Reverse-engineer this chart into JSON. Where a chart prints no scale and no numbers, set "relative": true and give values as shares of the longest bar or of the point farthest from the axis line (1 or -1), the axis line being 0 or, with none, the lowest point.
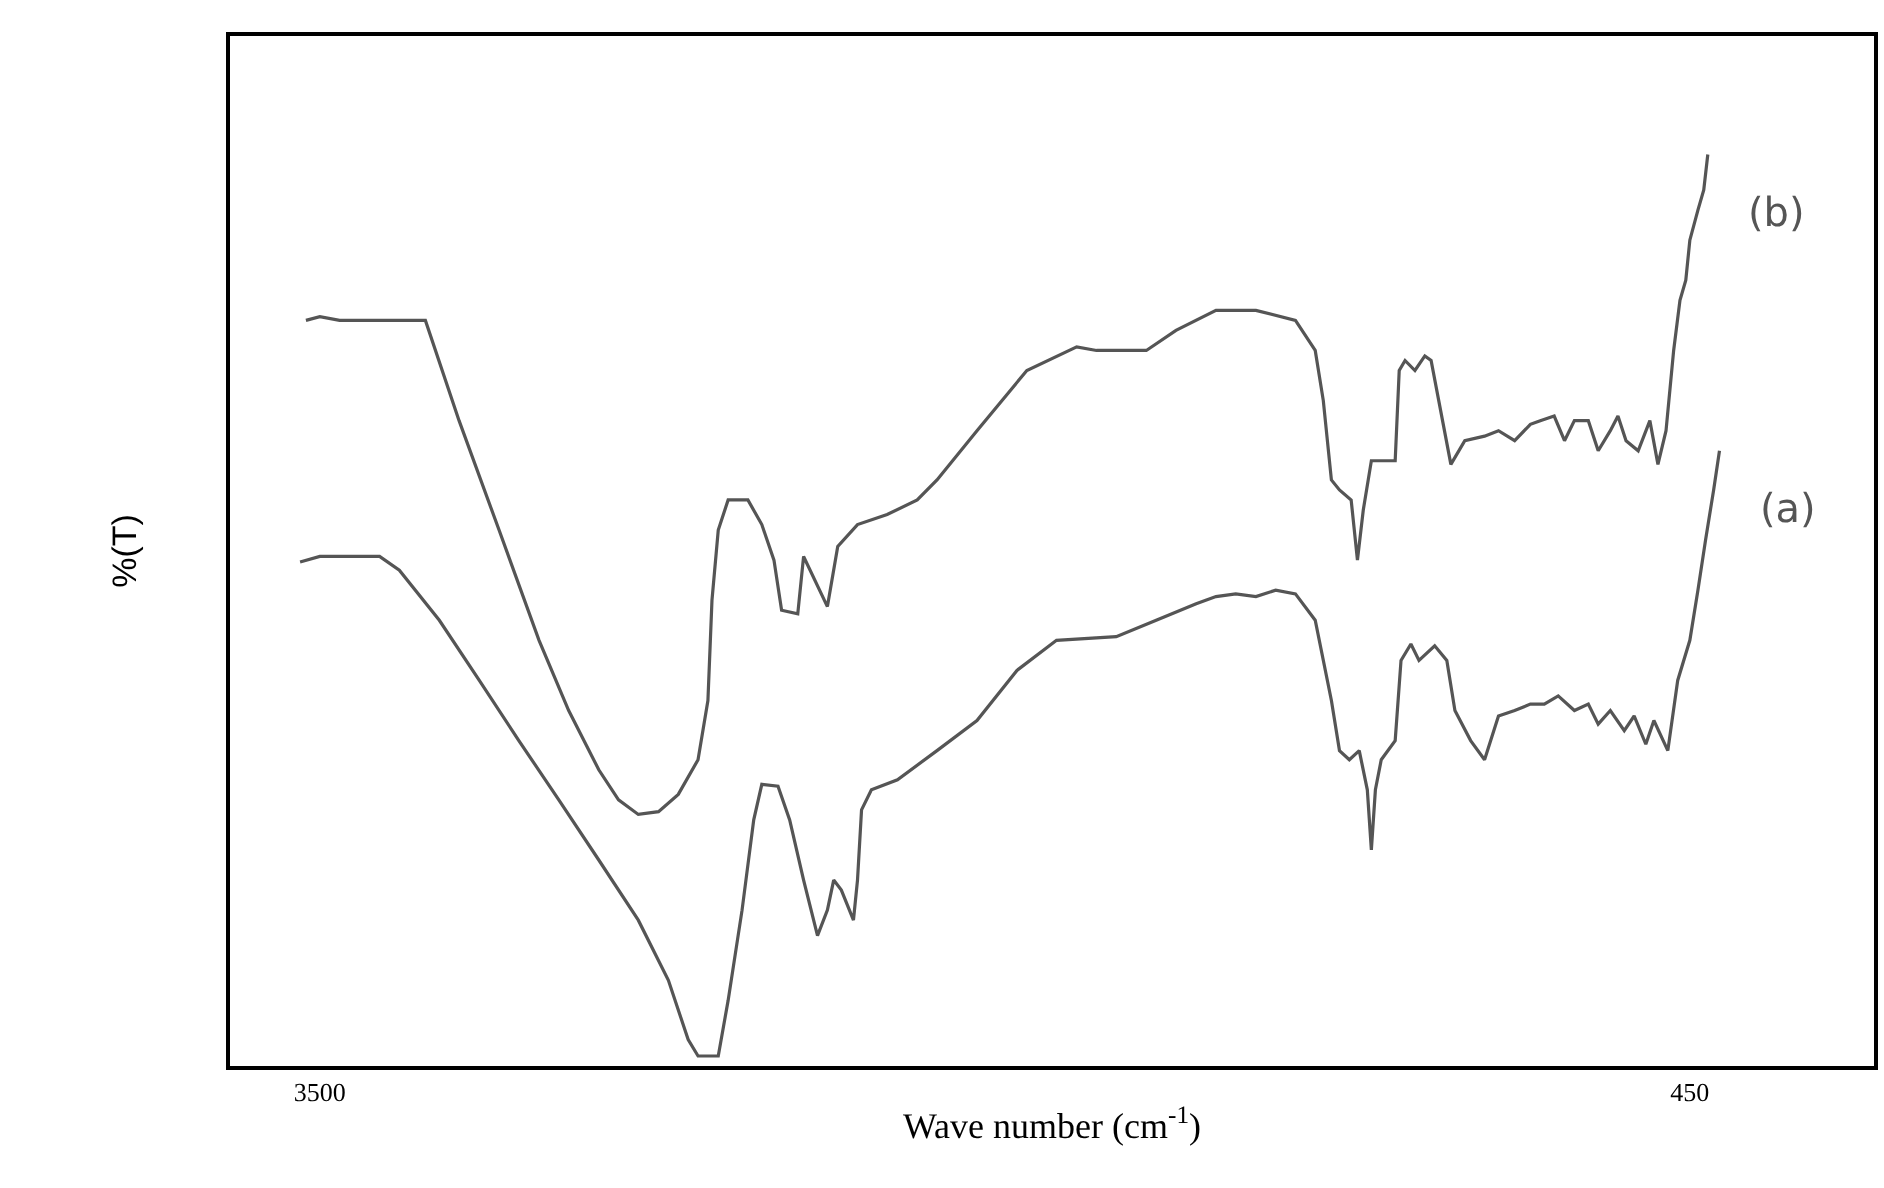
{
  "chart_data": {
    "type": "line",
    "relative": true,
    "xlabel": "Wave number (cm$^{-1}$)",
    "ylabel": "%(T)",
    "xlim": [
      3700,
      40
    ],
    "xticks": [
      3500,
      450
    ],
    "legend": false,
    "marker": "none",
    "line_style": "solid",
    "series": [
      {
        "name": "(b)",
        "color": "#555555",
        "x": [
          3531,
          3500,
          3456,
          3389,
          3265,
          3190,
          3101,
          3012,
          2946,
          2879,
          2835,
          2791,
          2746,
          2702,
          2658,
          2636,
          2627,
          2613,
          2591,
          2547,
          2516,
          2489,
          2472,
          2436,
          2423,
          2370,
          2347,
          2303,
          2237,
          2170,
          2126,
          2037,
          1926,
          1815,
          1771,
          1660,
          1594,
          1505,
          1416,
          1328,
          1284,
          1266,
          1248,
          1230,
          1204,
          1190,
          1177,
          1159,
          1106,
          1097,
          1084,
          1062,
          1040,
          1026,
          1009,
          982,
          951,
          907,
          876,
          840,
          805,
          783,
          752,
          729,
          707,
          676,
          654,
          627,
          610,
          592,
          565,
          539,
          521,
          503,
          486,
          472,
          459,
          450,
          432,
          419,
          410
        ],
        "values": [
          0.818,
          0.822,
          0.818,
          0.818,
          0.818,
          0.708,
          0.588,
          0.467,
          0.39,
          0.325,
          0.292,
          0.276,
          0.279,
          0.298,
          0.336,
          0.401,
          0.511,
          0.588,
          0.621,
          0.621,
          0.594,
          0.555,
          0.5,
          0.496,
          0.559,
          0.504,
          0.57,
          0.594,
          0.605,
          0.621,
          0.643,
          0.697,
          0.763,
          0.789,
          0.785,
          0.785,
          0.807,
          0.829,
          0.829,
          0.818,
          0.785,
          0.73,
          0.643,
          0.632,
          0.621,
          0.555,
          0.61,
          0.664,
          0.664,
          0.763,
          0.774,
          0.763,
          0.779,
          0.774,
          0.73,
          0.66,
          0.686,
          0.691,
          0.697,
          0.686,
          0.704,
          0.708,
          0.713,
          0.686,
          0.708,
          0.708,
          0.675,
          0.697,
          0.713,
          0.686,
          0.675,
          0.708,
          0.66,
          0.697,
          0.785,
          0.84,
          0.862,
          0.906,
          0.939,
          0.961,
          1.0
        ]
      },
      {
        "name": "(a)",
        "color": "#555555",
        "x": [
          3544,
          3500,
          3367,
          3323,
          3234,
          3145,
          3057,
          2968,
          2879,
          2791,
          2724,
          2680,
          2658,
          2613,
          2591,
          2560,
          2534,
          2516,
          2480,
          2454,
          2423,
          2392,
          2370,
          2356,
          2339,
          2312,
          2303,
          2294,
          2272,
          2214,
          2126,
          2037,
          1948,
          1860,
          1727,
          1638,
          1549,
          1505,
          1461,
          1416,
          1372,
          1328,
          1284,
          1248,
          1230,
          1208,
          1186,
          1168,
          1159,
          1150,
          1137,
          1106,
          1093,
          1071,
          1053,
          1018,
          991,
          973,
          938,
          907,
          876,
          840,
          805,
          774,
          743,
          707,
          676,
          654,
          627,
          596,
          574,
          548,
          530,
          499,
          477,
          450,
          432,
          415,
          397,
          384
        ],
        "values": [
          0.553,
          0.559,
          0.559,
          0.544,
          0.489,
          0.423,
          0.357,
          0.292,
          0.226,
          0.16,
          0.094,
          0.029,
          0.011,
          0.011,
          0.072,
          0.171,
          0.27,
          0.309,
          0.307,
          0.27,
          0.204,
          0.143,
          0.171,
          0.204,
          0.193,
          0.16,
          0.204,
          0.281,
          0.303,
          0.314,
          0.346,
          0.379,
          0.434,
          0.467,
          0.471,
          0.489,
          0.507,
          0.515,
          0.518,
          0.515,
          0.522,
          0.518,
          0.489,
          0.401,
          0.346,
          0.336,
          0.346,
          0.303,
          0.237,
          0.303,
          0.336,
          0.357,
          0.445,
          0.463,
          0.445,
          0.461,
          0.445,
          0.39,
          0.357,
          0.336,
          0.384,
          0.39,
          0.397,
          0.397,
          0.406,
          0.39,
          0.397,
          0.375,
          0.39,
          0.368,
          0.384,
          0.353,
          0.379,
          0.346,
          0.423,
          0.467,
          0.522,
          0.577,
          0.632,
          0.675
        ]
      }
    ]
  }
}
